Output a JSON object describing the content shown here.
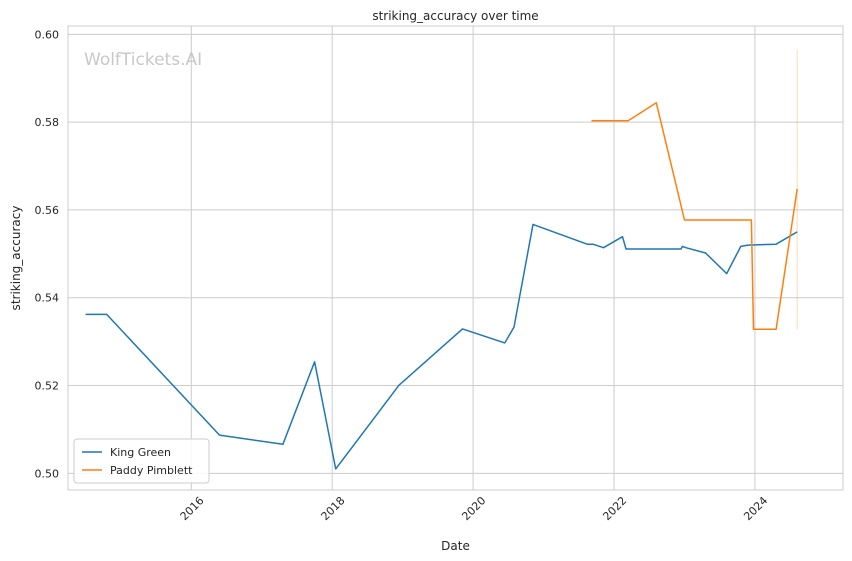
{
  "chart_data": {
    "type": "line",
    "title": "striking_accuracy over time",
    "xlabel": "Date",
    "ylabel": "striking_accuracy",
    "watermark": "WolfTickets.AI",
    "xlim": [
      2014.25,
      2025.25
    ],
    "ylim": [
      0.4962,
      0.6019
    ],
    "x_ticks": [
      2016,
      2018,
      2020,
      2022,
      2024
    ],
    "x_tick_labels": [
      "2016",
      "2018",
      "2020",
      "2022",
      "2024"
    ],
    "y_ticks": [
      0.5,
      0.52,
      0.54,
      0.56,
      0.58,
      0.6
    ],
    "y_tick_labels": [
      "0.50",
      "0.52",
      "0.54",
      "0.56",
      "0.58",
      "0.60"
    ],
    "grid": true,
    "legend_position": "lower-left",
    "series": [
      {
        "name": "King Green",
        "color": "#1f77b4",
        "x": [
          2014.5,
          2014.8,
          2016.4,
          2017.3,
          2017.75,
          2018.05,
          2018.95,
          2019.85,
          2020.45,
          2020.58,
          2020.85,
          2021.62,
          2021.7,
          2021.85,
          2022.12,
          2022.17,
          2022.95,
          2022.97,
          2023.02,
          2023.3,
          2023.6,
          2023.8,
          2023.9,
          2024.3,
          2024.6
        ],
        "y": [
          0.5362,
          0.5362,
          0.5087,
          0.5066,
          0.5254,
          0.501,
          0.5201,
          0.5329,
          0.5297,
          0.5333,
          0.5567,
          0.5522,
          0.5522,
          0.5514,
          0.5539,
          0.5511,
          0.5511,
          0.5517,
          0.5514,
          0.5502,
          0.5455,
          0.5517,
          0.552,
          0.5522,
          0.555
        ]
      },
      {
        "name": "Paddy Pimblett",
        "color": "#ff7f0e",
        "x": [
          2021.68,
          2022.2,
          2022.6,
          2023.0,
          2023.95,
          2023.98,
          2024.3,
          2024.6
        ],
        "y": [
          0.5803,
          0.5803,
          0.5844,
          0.5577,
          0.5577,
          0.5328,
          0.5328,
          0.5648
        ]
      }
    ],
    "ci_bands": [
      {
        "series": "Paddy Pimblett",
        "x": 2024.6,
        "y_range": [
          0.5328,
          0.5966
        ]
      }
    ]
  }
}
